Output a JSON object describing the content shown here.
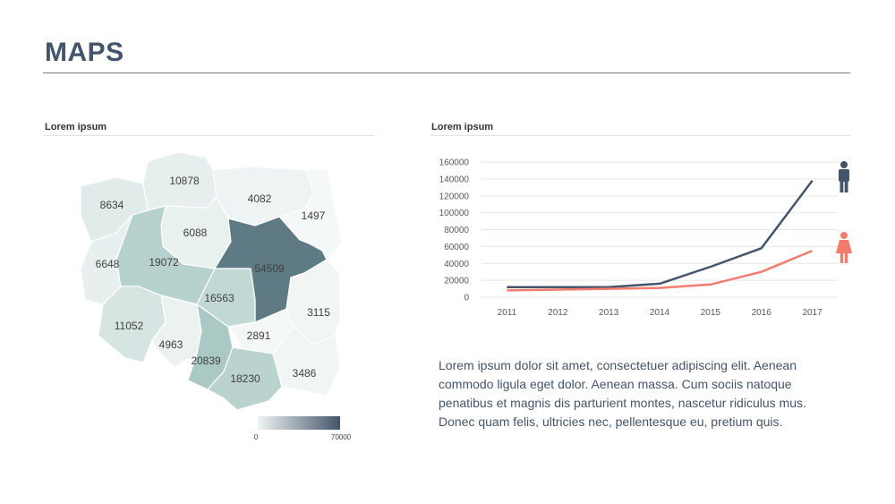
{
  "page": {
    "title": "MAPS"
  },
  "map_panel": {
    "label": "Lorem ipsum",
    "regions": [
      {
        "value": "10878",
        "color": "#e6efed"
      },
      {
        "value": "8634",
        "color": "#e1ecea"
      },
      {
        "value": "4082",
        "color": "#eef4f3"
      },
      {
        "value": "1497",
        "color": "#f4f8f8"
      },
      {
        "value": "6088",
        "color": "#e9f1ef"
      },
      {
        "value": "6648",
        "color": "#e7f0ee"
      },
      {
        "value": "19072",
        "color": "#b7d1cf"
      },
      {
        "value": "54509",
        "color": "#5e7a84"
      },
      {
        "value": "16563",
        "color": "#c2d8d5"
      },
      {
        "value": "11052",
        "color": "#d6e5e2"
      },
      {
        "value": "3115",
        "color": "#f1f6f5"
      },
      {
        "value": "4963",
        "color": "#ebf2f0"
      },
      {
        "value": "2891",
        "color": "#f3f7f6"
      },
      {
        "value": "20839",
        "color": "#aac9c5"
      },
      {
        "value": "18230",
        "color": "#bad3cf"
      },
      {
        "value": "3486",
        "color": "#f0f6f4"
      }
    ],
    "legend": {
      "min": "0",
      "max": "70000",
      "color_low": "#eef5f3",
      "color_high": "#44546a"
    }
  },
  "chart_panel": {
    "label": "Lorem ipsum"
  },
  "chart_data": {
    "type": "line",
    "categories": [
      "2011",
      "2012",
      "2013",
      "2014",
      "2015",
      "2016",
      "2017"
    ],
    "ylim": [
      0,
      160000
    ],
    "yticks": [
      "0",
      "20000",
      "40000",
      "60000",
      "80000",
      "100000",
      "120000",
      "140000",
      "160000"
    ],
    "series": [
      {
        "values": [
          12000,
          12000,
          12000,
          16000,
          36000,
          58000,
          138000
        ],
        "color": "#44546a",
        "icon": "male-icon"
      },
      {
        "values": [
          8000,
          9000,
          10000,
          11000,
          15000,
          30000,
          55000
        ],
        "color": "#f47c6e",
        "icon": "female-icon"
      }
    ],
    "grid": true
  },
  "description": "Lorem ipsum dolor sit amet, consectetuer adipiscing elit. Aenean commodo ligula eget dolor. Aenean massa. Cum sociis natoque penatibus et magnis dis parturient montes, nascetur ridiculus mus. Donec quam felis, ultricies nec, pellentesque eu, pretium quis."
}
